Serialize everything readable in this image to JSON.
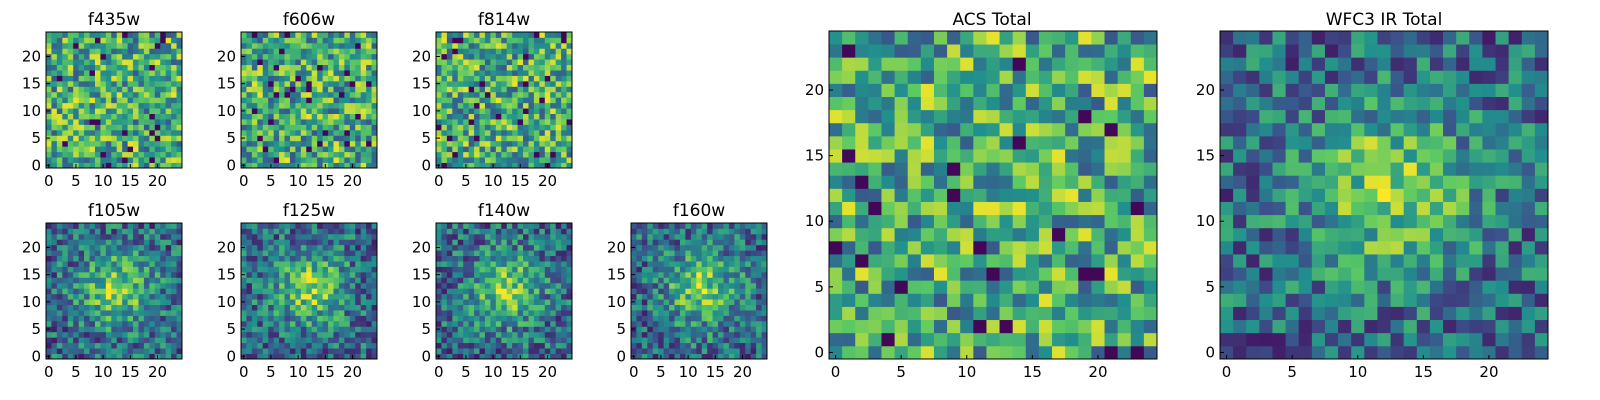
{
  "chart_data": {
    "type": "heatmap",
    "colormap": "viridis",
    "colors": [
      "#440154",
      "#3b528b",
      "#21908d",
      "#5dc963",
      "#fde725"
    ],
    "panels": [
      {
        "id": "f435w",
        "title": "f435w",
        "size": 25,
        "pattern": "noise",
        "seed": 11,
        "xticks": [
          0,
          5,
          10,
          15,
          20
        ],
        "yticks": [
          0,
          5,
          10,
          15,
          20
        ]
      },
      {
        "id": "f606w",
        "title": "f606w",
        "size": 25,
        "pattern": "noise",
        "seed": 23,
        "xticks": [
          0,
          5,
          10,
          15,
          20
        ],
        "yticks": [
          0,
          5,
          10,
          15,
          20
        ]
      },
      {
        "id": "f814w",
        "title": "f814w",
        "size": 25,
        "pattern": "noise",
        "seed": 37,
        "xticks": [
          0,
          5,
          10,
          15,
          20
        ],
        "yticks": [
          0,
          5,
          10,
          15,
          20
        ]
      },
      {
        "id": "f105w",
        "title": "f105w",
        "size": 25,
        "pattern": "source",
        "seed": 41,
        "xticks": [
          0,
          5,
          10,
          15,
          20
        ],
        "yticks": [
          0,
          5,
          10,
          15,
          20
        ]
      },
      {
        "id": "f125w",
        "title": "f125w",
        "size": 25,
        "pattern": "source",
        "seed": 53,
        "xticks": [
          0,
          5,
          10,
          15,
          20
        ],
        "yticks": [
          0,
          5,
          10,
          15,
          20
        ]
      },
      {
        "id": "f140w",
        "title": "f140w",
        "size": 25,
        "pattern": "source",
        "seed": 67,
        "xticks": [
          0,
          5,
          10,
          15,
          20
        ],
        "yticks": [
          0,
          5,
          10,
          15,
          20
        ]
      },
      {
        "id": "f160w",
        "title": "f160w",
        "size": 25,
        "pattern": "source",
        "seed": 79,
        "xticks": [
          0,
          5,
          10,
          15,
          20
        ],
        "yticks": [
          0,
          5,
          10,
          15,
          20
        ]
      },
      {
        "id": "acs-total",
        "title": "ACS Total",
        "size": 25,
        "pattern": "noise",
        "seed": 83,
        "xticks": [
          0,
          5,
          10,
          15,
          20
        ],
        "yticks": [
          0,
          5,
          10,
          15,
          20
        ]
      },
      {
        "id": "wfc3-ir-total",
        "title": "WFC3 IR Total",
        "size": 25,
        "pattern": "source",
        "seed": 97,
        "xticks": [
          0,
          5,
          10,
          15,
          20
        ],
        "yticks": [
          0,
          5,
          10,
          15,
          20
        ]
      }
    ]
  }
}
